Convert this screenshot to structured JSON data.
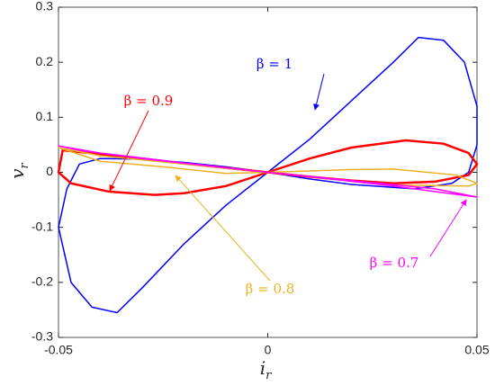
{
  "chart_data": {
    "type": "line",
    "x_label": [
      "i",
      "r"
    ],
    "y_label": [
      "v",
      "r"
    ],
    "xlim": [
      -0.05,
      0.05
    ],
    "xticks": [
      -0.05,
      0,
      0.05
    ],
    "ylim": [
      -0.3,
      0.3
    ],
    "yticks": [
      -0.3,
      -0.2,
      -0.1,
      0,
      0.1,
      0.2,
      0.3
    ],
    "series": [
      {
        "name": "β = 1",
        "color": "#0000ff",
        "x": [
          0,
          0.01,
          0.02,
          0.03,
          0.036,
          0.042,
          0.047,
          0.05,
          0.05,
          0.048,
          0.044,
          0.035,
          0.02,
          0.01,
          0,
          -0.01,
          -0.02,
          -0.03,
          -0.036,
          -0.042,
          -0.047,
          -0.05,
          -0.048,
          -0.045,
          -0.04,
          -0.03,
          -0.02,
          -0.01,
          0
        ],
        "values": [
          0,
          0.06,
          0.13,
          0.2,
          0.245,
          0.24,
          0.2,
          0.12,
          0.05,
          0.0,
          -0.02,
          -0.03,
          -0.022,
          -0.012,
          0,
          -0.06,
          -0.13,
          -0.21,
          -0.255,
          -0.245,
          -0.2,
          -0.1,
          -0.03,
          0.015,
          0.025,
          0.024,
          0.018,
          0.01,
          0
        ]
      },
      {
        "name": "β = 0.9",
        "color": "#ff0000",
        "x": [
          0,
          0.01,
          0.02,
          0.033,
          0.042,
          0.048,
          0.05,
          0.048,
          0.04,
          0.03,
          0.02,
          0.01,
          0,
          -0.01,
          -0.02,
          -0.027,
          -0.038,
          -0.047,
          -0.05,
          -0.049,
          -0.04,
          -0.03,
          -0.02,
          -0.01,
          0
        ],
        "values": [
          0,
          0.025,
          0.045,
          0.058,
          0.052,
          0.035,
          0.015,
          -0.005,
          -0.017,
          -0.02,
          -0.015,
          -0.008,
          0,
          -0.025,
          -0.038,
          -0.041,
          -0.035,
          -0.02,
          0.0,
          0.04,
          0.033,
          0.025,
          0.016,
          0.008,
          0
        ]
      },
      {
        "name": "β = 0.8",
        "color": "#edb120",
        "x": [
          0,
          0.02,
          0.03,
          0.045,
          0.05,
          0.048,
          0.03,
          0.01,
          0,
          -0.01,
          -0.025,
          -0.04,
          -0.05,
          -0.04,
          -0.02,
          -0.01,
          0
        ],
        "values": [
          0,
          0.005,
          0.006,
          -0.005,
          -0.02,
          -0.025,
          -0.023,
          -0.008,
          0,
          -0.002,
          0.01,
          0.02,
          0.045,
          0.03,
          0.015,
          0.007,
          0
        ]
      },
      {
        "name": "β = 0.7",
        "color": "#ff00ff",
        "x": [
          0,
          0.02,
          0.04,
          0.05,
          0.045,
          0.03,
          0.01,
          0,
          -0.02,
          -0.04,
          -0.05,
          -0.045,
          -0.03,
          -0.01,
          0
        ],
        "values": [
          0,
          -0.015,
          -0.03,
          -0.045,
          -0.04,
          -0.025,
          -0.008,
          0,
          0.017,
          0.035,
          0.048,
          0.04,
          0.025,
          0.008,
          0
        ]
      }
    ]
  }
}
